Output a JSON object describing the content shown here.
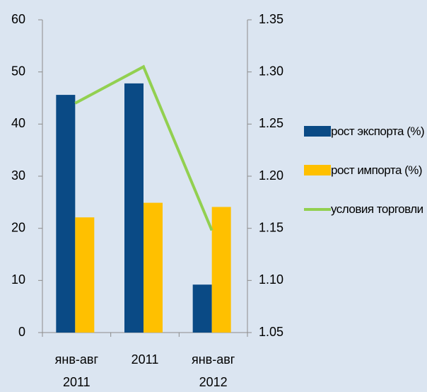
{
  "chart_data": {
    "type": "bar",
    "categories": [
      "янв-авг 2011",
      "2011",
      "янв-авг 2012"
    ],
    "series": [
      {
        "name": "рост экспорта (%)",
        "color": "#0a4a85",
        "values": [
          45.6,
          47.8,
          9.2
        ]
      },
      {
        "name": "рост импорта (%)",
        "color": "#ffc000",
        "values": [
          22.1,
          24.9,
          24.1
        ]
      },
      {
        "name": "условия торговли",
        "color": "#92d050",
        "type": "line",
        "axis": "y2",
        "values": [
          1.27,
          1.305,
          1.148
        ]
      }
    ],
    "ylim": [
      0,
      60
    ],
    "yticks": [
      0,
      10,
      20,
      30,
      40,
      50,
      60
    ],
    "y2lim": [
      1.05,
      1.35
    ],
    "y2ticks": [
      1.05,
      {
        "value": 1.1,
        "label": "1.10"
      },
      1.15,
      {
        "value": 1.2,
        "label": "1.20"
      },
      1.25,
      {
        "value": 1.3,
        "label": "1.30"
      },
      1.35
    ],
    "legend": "right"
  }
}
